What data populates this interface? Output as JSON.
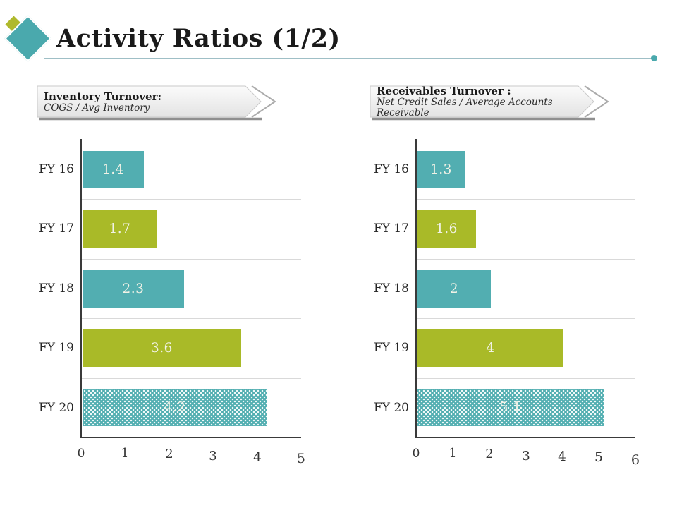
{
  "slide": {
    "title": "Activity Ratios (1/2)",
    "background": "#ffffff",
    "title_color": "#1a1a1a",
    "rule_color": "#9fbfc6",
    "rule_dot_color": "#4aa9ad",
    "logo": {
      "teal_diamond_color": "#4aa9ad",
      "olive_diamond_color": "#afb92c"
    }
  },
  "colors": {
    "teal": "#52aeb1",
    "olive": "#a9ba28",
    "bar_label": "#f1f2e6",
    "axis": "#3a3a3a",
    "gridline": "#d9d9d9",
    "label_text": "#262626"
  },
  "charts": [
    {
      "header_title": "Inventory Turnover:",
      "header_formula": "COGS / Avg Inventory"
    },
    {
      "header_title": "Receivables Turnover :",
      "header_formula": "Net Credit Sales / Average Accounts Receivable"
    }
  ],
  "chart_data": [
    {
      "type": "bar",
      "orientation": "horizontal",
      "title": "Inventory Turnover: COGS / Avg Inventory",
      "categories": [
        "FY 16",
        "FY 17",
        "FY 18",
        "FY 19",
        "FY 20"
      ],
      "values": [
        1.4,
        1.7,
        2.3,
        3.6,
        4.2
      ],
      "value_labels": [
        "1.4",
        "1.7",
        "2.3",
        "3.6",
        "4.2"
      ],
      "bar_styles": [
        "teal",
        "olive",
        "teal",
        "olive",
        "teal_dotted"
      ],
      "xlim": [
        0,
        5
      ],
      "x_ticks": [
        "0",
        "1",
        "2",
        "3",
        "4",
        "5"
      ],
      "grid": "horizontal-row-separators",
      "legend": "none"
    },
    {
      "type": "bar",
      "orientation": "horizontal",
      "title": "Receivables Turnover : Net Credit Sales / Average Accounts Receivable",
      "categories": [
        "FY 16",
        "FY 17",
        "FY 18",
        "FY 19",
        "FY 20"
      ],
      "values": [
        1.3,
        1.6,
        2,
        4,
        5.1
      ],
      "value_labels": [
        "1.3",
        "1.6",
        "2",
        "4",
        "5.1"
      ],
      "bar_styles": [
        "teal",
        "olive",
        "teal",
        "olive",
        "teal_dotted"
      ],
      "xlim": [
        0,
        6
      ],
      "x_ticks": [
        "0",
        "1",
        "2",
        "3",
        "4",
        "5",
        "6"
      ],
      "grid": "horizontal-row-separators",
      "legend": "none"
    }
  ]
}
